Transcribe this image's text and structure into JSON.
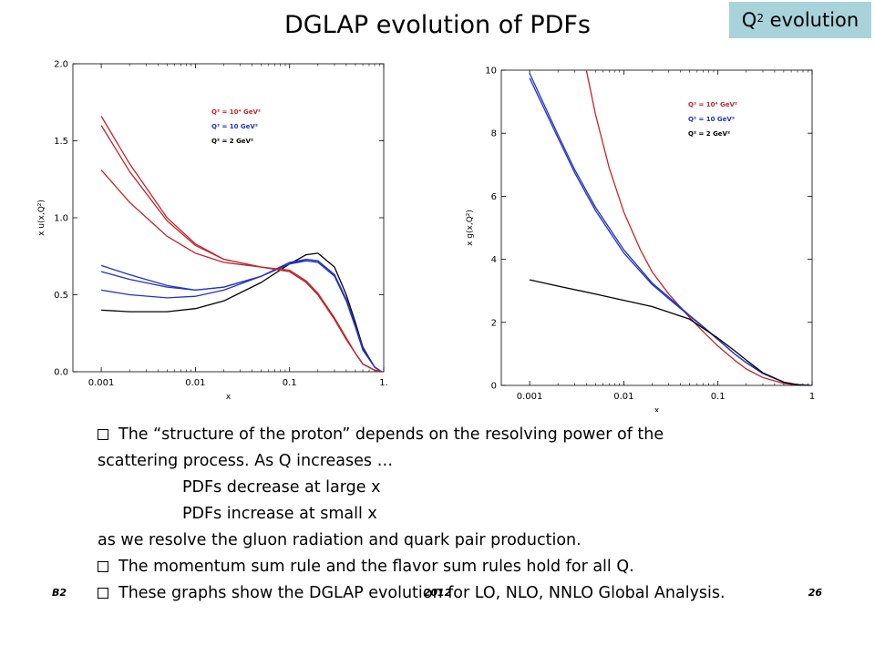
{
  "slide": {
    "title": "DGLAP evolution of PDFs",
    "badge": {
      "text": "Q",
      "sup": "2",
      "rest": " evolution"
    }
  },
  "bullets": [
    {
      "bullet": true,
      "text": "The “structure of the proton” depends on the resolving power of the"
    },
    {
      "bullet": false,
      "text": "scattering process. As Q increases …"
    },
    {
      "bullet": false,
      "indent": true,
      "text": "PDFs decrease at large x"
    },
    {
      "bullet": false,
      "indent": true,
      "text": "PDFs increase at small x"
    },
    {
      "bullet": false,
      "text": "as we resolve the gluon radiation and quark pair production."
    },
    {
      "bullet": true,
      "text": "The momentum sum rule and the flavor sum rules hold for all Q."
    },
    {
      "bullet": true,
      "text": "These graphs show the DGLAP evolution for LO, NLO, NNLO Global Analysis."
    }
  ],
  "footer": {
    "left": "B2",
    "center": "2012",
    "right": "26"
  },
  "colors": {
    "red": "#c0262d",
    "blue": "#2133c0",
    "black": "#000000"
  },
  "chart_data": [
    {
      "type": "line",
      "xscale": "log",
      "xlabel": "x",
      "ylabel": "x u(x,Q²)",
      "xlim": [
        0.0005,
        1.0
      ],
      "ylim": [
        0.0,
        2.0
      ],
      "xticks": [
        {
          "v": 0.001,
          "label": "0.001"
        },
        {
          "v": 0.01,
          "label": "0.01"
        },
        {
          "v": 0.1,
          "label": "0.1"
        },
        {
          "v": 1.0,
          "label": "1."
        }
      ],
      "yticks": [
        {
          "v": 0.0,
          "label": "0.0"
        },
        {
          "v": 0.5,
          "label": "0.5"
        },
        {
          "v": 1.0,
          "label": "1.0"
        },
        {
          "v": 1.5,
          "label": "1.5"
        },
        {
          "v": 2.0,
          "label": "2.0"
        }
      ],
      "legend": [
        {
          "label": "Q² = 10⁴ GeV²",
          "color": "#c0262d"
        },
        {
          "label": "Q² = 10 GeV²",
          "color": "#2133c0"
        },
        {
          "label": "Q² = 2 GeV²",
          "color": "#000000"
        }
      ],
      "series": [
        {
          "name": "Q² = 2 GeV²",
          "color": "#000000",
          "x": [
            0.001,
            0.002,
            0.005,
            0.01,
            0.02,
            0.05,
            0.1,
            0.15,
            0.2,
            0.3,
            0.4,
            0.5,
            0.6,
            0.8,
            0.95
          ],
          "y": [
            0.4,
            0.39,
            0.39,
            0.41,
            0.46,
            0.58,
            0.7,
            0.76,
            0.77,
            0.68,
            0.5,
            0.32,
            0.16,
            0.03,
            0.0
          ]
        },
        {
          "color": "#2133c0",
          "x": [
            0.001,
            0.002,
            0.005,
            0.01,
            0.02,
            0.05,
            0.1,
            0.15,
            0.2,
            0.3,
            0.4,
            0.5,
            0.6,
            0.8,
            0.95
          ],
          "y": [
            0.53,
            0.5,
            0.48,
            0.49,
            0.53,
            0.62,
            0.7,
            0.73,
            0.72,
            0.63,
            0.47,
            0.3,
            0.15,
            0.03,
            0.0
          ]
        },
        {
          "color": "#2133c0",
          "x": [
            0.001,
            0.002,
            0.005,
            0.01,
            0.02,
            0.05,
            0.1,
            0.15,
            0.2,
            0.3,
            0.4,
            0.5,
            0.6,
            0.8,
            0.95
          ],
          "y": [
            0.65,
            0.6,
            0.55,
            0.53,
            0.55,
            0.62,
            0.7,
            0.72,
            0.71,
            0.62,
            0.46,
            0.29,
            0.14,
            0.03,
            0.0
          ]
        },
        {
          "color": "#2133c0",
          "x": [
            0.001,
            0.002,
            0.005,
            0.01,
            0.02,
            0.05,
            0.1,
            0.15,
            0.2,
            0.3,
            0.4,
            0.5,
            0.6,
            0.8,
            0.95
          ],
          "y": [
            0.69,
            0.63,
            0.56,
            0.53,
            0.55,
            0.62,
            0.71,
            0.73,
            0.72,
            0.63,
            0.47,
            0.3,
            0.15,
            0.03,
            0.0
          ]
        },
        {
          "color": "#c0262d",
          "x": [
            0.001,
            0.002,
            0.005,
            0.01,
            0.02,
            0.05,
            0.1,
            0.15,
            0.2,
            0.3,
            0.4,
            0.5,
            0.6,
            0.8,
            0.95
          ],
          "y": [
            1.31,
            1.1,
            0.88,
            0.77,
            0.71,
            0.68,
            0.65,
            0.58,
            0.5,
            0.34,
            0.21,
            0.12,
            0.05,
            0.01,
            0.0
          ]
        },
        {
          "color": "#c0262d",
          "x": [
            0.001,
            0.002,
            0.005,
            0.01,
            0.02,
            0.05,
            0.1,
            0.15,
            0.2,
            0.3,
            0.4,
            0.5,
            0.6,
            0.8,
            0.95
          ],
          "y": [
            1.6,
            1.3,
            0.98,
            0.82,
            0.73,
            0.68,
            0.65,
            0.58,
            0.5,
            0.34,
            0.21,
            0.12,
            0.05,
            0.01,
            0.0
          ]
        },
        {
          "color": "#c0262d",
          "x": [
            0.001,
            0.002,
            0.005,
            0.01,
            0.02,
            0.05,
            0.1,
            0.15,
            0.2,
            0.3,
            0.4,
            0.5,
            0.6,
            0.8,
            0.95
          ],
          "y": [
            1.66,
            1.35,
            1.0,
            0.83,
            0.73,
            0.68,
            0.66,
            0.59,
            0.51,
            0.35,
            0.22,
            0.12,
            0.05,
            0.01,
            0.0
          ]
        }
      ]
    },
    {
      "type": "line",
      "xscale": "log",
      "xlabel": "x",
      "ylabel": "x g(x,Q²)",
      "xlim": [
        0.0005,
        1.0
      ],
      "ylim": [
        0,
        10
      ],
      "xticks": [
        {
          "v": 0.001,
          "label": "0.001"
        },
        {
          "v": 0.01,
          "label": "0.01"
        },
        {
          "v": 0.1,
          "label": "0.1"
        },
        {
          "v": 1.0,
          "label": "1"
        }
      ],
      "yticks": [
        {
          "v": 0,
          "label": "0"
        },
        {
          "v": 2,
          "label": "2"
        },
        {
          "v": 4,
          "label": "4"
        },
        {
          "v": 6,
          "label": "6"
        },
        {
          "v": 8,
          "label": "8"
        },
        {
          "v": 10,
          "label": "10"
        }
      ],
      "legend": [
        {
          "label": "Q² = 10⁴ GeV²",
          "color": "#c0262d"
        },
        {
          "label": "Q² = 10 GeV²",
          "color": "#2133c0"
        },
        {
          "label": "Q² = 2 GeV²",
          "color": "#000000"
        }
      ],
      "series": [
        {
          "color": "#c0262d",
          "x": [
            0.004,
            0.005,
            0.007,
            0.01,
            0.015,
            0.02,
            0.03,
            0.05,
            0.07,
            0.1,
            0.15,
            0.2,
            0.3,
            0.5,
            0.7,
            0.95
          ],
          "y": [
            10.0,
            8.6,
            6.9,
            5.5,
            4.3,
            3.6,
            2.9,
            2.15,
            1.7,
            1.25,
            0.8,
            0.52,
            0.25,
            0.06,
            0.01,
            0.0
          ]
        },
        {
          "color": "#2133c0",
          "x": [
            0.001,
            0.002,
            0.003,
            0.005,
            0.01,
            0.02,
            0.03,
            0.05,
            0.07,
            0.1,
            0.15,
            0.2,
            0.3,
            0.5,
            0.7,
            0.95
          ],
          "y": [
            9.75,
            7.85,
            6.75,
            5.55,
            4.2,
            3.2,
            2.75,
            2.2,
            1.85,
            1.45,
            1.0,
            0.72,
            0.38,
            0.1,
            0.02,
            0.0
          ]
        },
        {
          "color": "#2133c0",
          "x": [
            0.001,
            0.002,
            0.003,
            0.005,
            0.01,
            0.02,
            0.03,
            0.05,
            0.07,
            0.1,
            0.15,
            0.2,
            0.3,
            0.5,
            0.7,
            0.95
          ],
          "y": [
            9.9,
            7.95,
            6.85,
            5.65,
            4.3,
            3.25,
            2.8,
            2.22,
            1.86,
            1.46,
            1.0,
            0.72,
            0.38,
            0.1,
            0.02,
            0.0
          ]
        },
        {
          "name": "Q² = 2 GeV²",
          "color": "#000000",
          "x": [
            0.001,
            0.002,
            0.005,
            0.01,
            0.02,
            0.05,
            0.1,
            0.15,
            0.2,
            0.3,
            0.5,
            0.7,
            0.95
          ],
          "y": [
            3.35,
            3.15,
            2.9,
            2.7,
            2.5,
            2.1,
            1.5,
            1.1,
            0.8,
            0.4,
            0.1,
            0.02,
            0.0
          ]
        }
      ]
    }
  ]
}
